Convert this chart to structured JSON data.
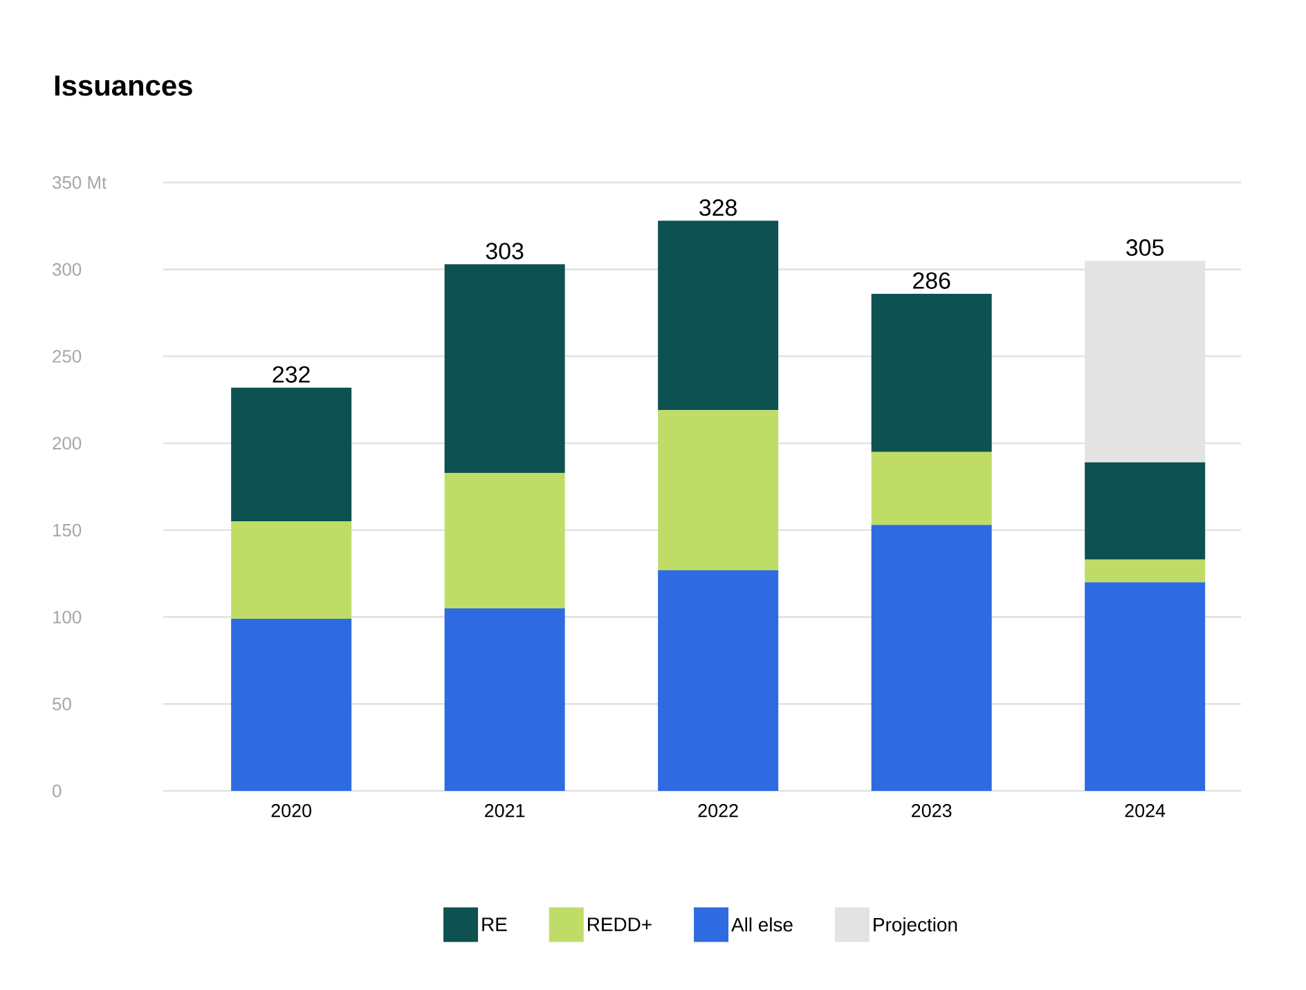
{
  "chart_data": {
    "type": "bar",
    "title": "Issuances",
    "stacked": true,
    "categories": [
      "2020",
      "2021",
      "2022",
      "2023",
      "2024"
    ],
    "series": [
      {
        "name": "All else",
        "color": "#2e6be0",
        "values": [
          99,
          105,
          127,
          153,
          120
        ]
      },
      {
        "name": "REDD+",
        "color": "#bfdd66",
        "values": [
          56,
          78,
          92,
          42,
          13
        ]
      },
      {
        "name": "RE",
        "color": "#0d5151",
        "values": [
          77,
          120,
          109,
          91,
          56
        ]
      },
      {
        "name": "Projection",
        "color": "#e3e3e3",
        "values": [
          null,
          null,
          null,
          null,
          116
        ]
      }
    ],
    "totals": [
      "232",
      "303",
      "328",
      "286",
      "305"
    ],
    "ylim": [
      0,
      350
    ],
    "yticks": [
      0,
      50,
      100,
      150,
      200,
      250,
      300,
      {
        "value": 350,
        "label": "350 Mt"
      }
    ],
    "grid": "y",
    "legend": "bottom"
  }
}
